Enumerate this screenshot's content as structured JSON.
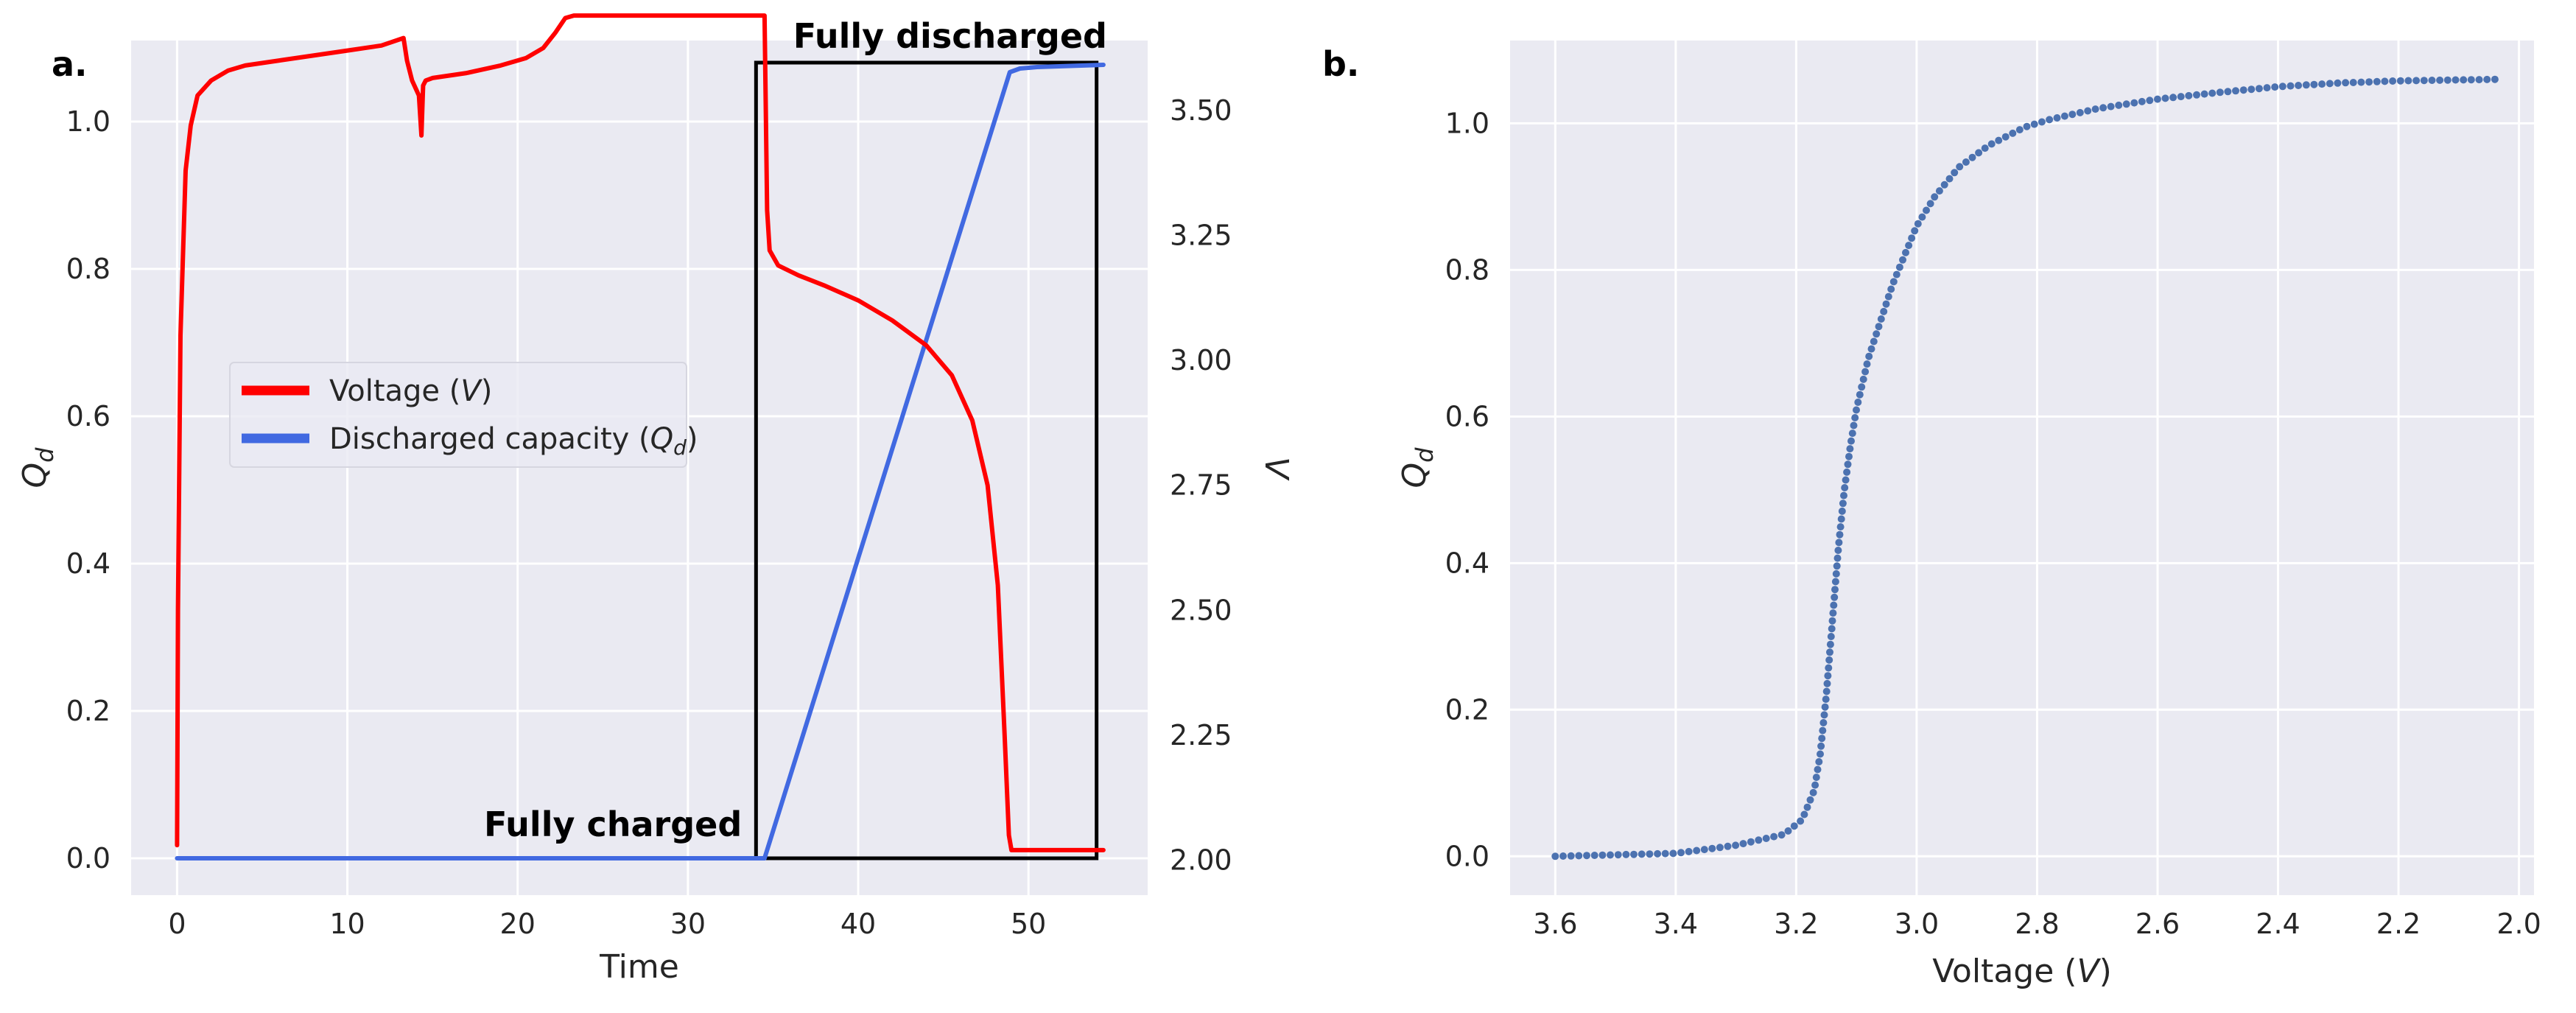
{
  "colors": {
    "background": "#eaeaf2",
    "grid": "#ffffff",
    "voltage": "#ff0000",
    "capacity": "#4169e1",
    "scatter": "#4c72b0",
    "box": "#000000"
  },
  "chart_data": [
    {
      "panel": "a.",
      "type": "line",
      "xlabel": "Time",
      "ylabel_left": "Q_d",
      "ylabel_right": "V",
      "xlim": [
        -2.7,
        57.0
      ],
      "ylim_left": [
        -0.05,
        1.11
      ],
      "ylim_right": [
        1.93,
        3.64
      ],
      "x_ticks": [
        0,
        10,
        20,
        30,
        40,
        50
      ],
      "y_left_ticks": [
        "0.0",
        "0.2",
        "0.4",
        "0.6",
        "0.8",
        "1.0"
      ],
      "y_right_ticks": [
        "2.00",
        "2.25",
        "2.50",
        "2.75",
        "3.00",
        "3.25",
        "3.50"
      ],
      "grid": true,
      "legend": {
        "placement": "center-left",
        "entries": [
          {
            "label": "Voltage (V)",
            "color": "#ff0000"
          },
          {
            "label": "Discharged capacity (Qd)",
            "color": "#4169e1"
          }
        ]
      },
      "annotations": [
        {
          "text": "Fully charged",
          "x": 25.6,
          "y": 0.03
        },
        {
          "text": "Fully discharged",
          "x": 45.4,
          "y": 1.1
        }
      ],
      "box": {
        "x0": 34.0,
        "x1": 54.0,
        "y0": 0.0,
        "y1": 1.08
      },
      "series": [
        {
          "name": "Voltage (V)",
          "axis": "right",
          "color": "#ff0000",
          "x": [
            0.0,
            0.05,
            0.2,
            0.5,
            0.8,
            1.2,
            2.0,
            3.0,
            4.0,
            6.0,
            8.0,
            10.0,
            12.0,
            13.3,
            13.5,
            13.8,
            14.2,
            14.35,
            14.45,
            14.6,
            15.0,
            17.0,
            19.0,
            20.5,
            21.5,
            22.2,
            22.8,
            23.3,
            26.0,
            30.0,
            34.5,
            34.65,
            34.8,
            35.3,
            36.5,
            38.0,
            40.0,
            42.0,
            44.0,
            45.5,
            46.7,
            47.6,
            48.2,
            48.6,
            48.85,
            49.0,
            52.0,
            54.4
          ],
          "y": [
            2.03,
            2.5,
            3.05,
            3.38,
            3.47,
            3.53,
            3.56,
            3.58,
            3.59,
            3.6,
            3.61,
            3.62,
            3.63,
            3.645,
            3.6,
            3.56,
            3.53,
            3.45,
            3.55,
            3.56,
            3.565,
            3.575,
            3.59,
            3.605,
            3.625,
            3.655,
            3.685,
            3.69,
            3.69,
            3.69,
            3.69,
            3.3,
            3.22,
            3.19,
            3.17,
            3.15,
            3.12,
            3.08,
            3.03,
            2.97,
            2.88,
            2.75,
            2.55,
            2.25,
            2.05,
            2.02,
            2.02,
            2.02
          ]
        },
        {
          "name": "Discharged capacity (Qd)",
          "axis": "left",
          "color": "#4169e1",
          "x": [
            0.0,
            34.5,
            48.9,
            49.5,
            50.5,
            54.4
          ],
          "y": [
            0.0,
            0.0,
            1.067,
            1.072,
            1.074,
            1.077
          ]
        }
      ]
    },
    {
      "panel": "b.",
      "type": "scatter",
      "xlabel": "Voltage (V)",
      "ylabel": "Q_d",
      "xlim": [
        3.675,
        1.975
      ],
      "ylim": [
        -0.053,
        1.113
      ],
      "x_ticks": [
        "3.6",
        "3.4",
        "3.2",
        "3.0",
        "2.8",
        "2.6",
        "2.4",
        "2.2",
        "2.0"
      ],
      "y_ticks": [
        "0.0",
        "0.2",
        "0.4",
        "0.6",
        "0.8",
        "1.0"
      ],
      "grid": true,
      "curve": {
        "color": "#4c72b0",
        "v": [
          3.6,
          3.4,
          3.3,
          3.22,
          3.19,
          3.17,
          3.16,
          3.15,
          3.14,
          3.13,
          3.12,
          3.11,
          3.1,
          3.08,
          3.06,
          3.04,
          3.02,
          3.0,
          2.97,
          2.93,
          2.88,
          2.82,
          2.78,
          2.7,
          2.6,
          2.5,
          2.4,
          2.3,
          2.2,
          2.04
        ],
        "q": [
          0.0,
          0.004,
          0.015,
          0.03,
          0.05,
          0.09,
          0.14,
          0.22,
          0.32,
          0.42,
          0.5,
          0.56,
          0.61,
          0.68,
          0.73,
          0.78,
          0.82,
          0.86,
          0.9,
          0.94,
          0.97,
          0.995,
          1.005,
          1.02,
          1.033,
          1.042,
          1.05,
          1.055,
          1.058,
          1.06
        ],
        "point_count": 190
      }
    }
  ]
}
